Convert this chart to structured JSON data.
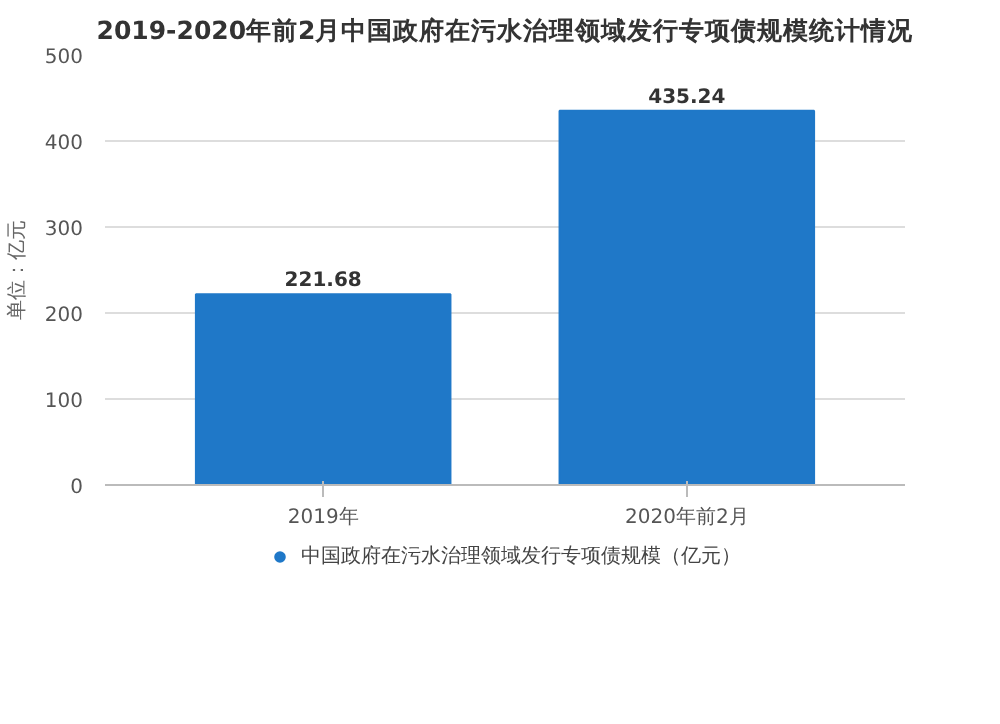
{
  "chart_data": {
    "type": "bar",
    "title": "2019-2020年前2月中国政府在污水治理领域发行专项债规模统计情况",
    "ylabel": "单位：亿元",
    "categories": [
      "2019年",
      "2020年前2月"
    ],
    "series": [
      {
        "name": "中国政府在污水治理领域发行专项债规模（亿元）",
        "color": "#1f78c8",
        "values": [
          221.68,
          435.24
        ]
      }
    ],
    "data_labels": true,
    "ylim": [
      0,
      500
    ],
    "yticks": [
      0,
      100,
      200,
      300,
      400,
      500
    ],
    "grid": "y",
    "legend": "bottom",
    "marker": "circle"
  }
}
